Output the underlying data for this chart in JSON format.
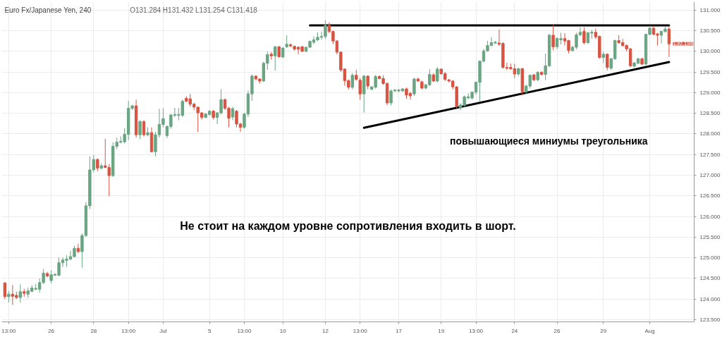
{
  "chart_data": {
    "type": "candlestick",
    "title": "Euro Fx/Japanese Yen, 240",
    "subtitle": "O131.284 H131.432 L131.254 C131.418",
    "annotations": [
      "Не стоит на каждом уровне сопротивления входить в шорт.",
      "повышающиеся миниумы треугольника",
      "130.184"
    ],
    "ylim": [
      123.45,
      131.2
    ],
    "yticks": [
      {
        "value": 123.5,
        "label": "123.500"
      },
      {
        "value": 124,
        "label": "124.000"
      },
      {
        "value": 124.5,
        "label": "124.500"
      },
      {
        "value": 125,
        "label": "125.000"
      },
      {
        "value": 125.5,
        "label": "125.500"
      },
      {
        "value": 126,
        "label": "126.000"
      },
      {
        "value": 126.5,
        "label": "126.500"
      },
      {
        "value": 127,
        "label": "127.000"
      },
      {
        "value": 127.5,
        "label": "127.500"
      },
      {
        "value": 128,
        "label": "128.000"
      },
      {
        "value": 128.5,
        "label": "128.500"
      },
      {
        "value": 129,
        "label": "129.000"
      },
      {
        "value": 129.5,
        "label": "129.500"
      },
      {
        "value": 130,
        "label": "130.000"
      },
      {
        "value": 130.5,
        "label": "130.500"
      },
      {
        "value": 131,
        "label": "131.000"
      }
    ],
    "grid": true,
    "categories": [
      null,
      "13:00",
      null,
      null,
      null,
      null,
      null,
      null,
      null,
      null,
      null,
      null,
      "26",
      null,
      null,
      null,
      null,
      null,
      null,
      null,
      null,
      null,
      null,
      "28",
      null,
      null,
      null,
      null,
      null,
      null,
      null,
      null,
      "13:00",
      null,
      null,
      null,
      null,
      null,
      null,
      null,
      null,
      "Jul",
      null,
      null,
      null,
      null,
      null,
      null,
      null,
      null,
      null,
      null,
      null,
      "5",
      null,
      null,
      null,
      null,
      null,
      null,
      null,
      null,
      "13:00",
      null,
      null,
      null,
      null,
      null,
      null,
      null,
      null,
      null,
      "10",
      null,
      null,
      null,
      null,
      null,
      null,
      null,
      null,
      null,
      null,
      "12",
      null,
      null,
      null,
      null,
      null,
      null,
      null,
      null,
      "13:00",
      null,
      null,
      null,
      null,
      null,
      null,
      null,
      null,
      null,
      "17",
      null,
      null,
      null,
      null,
      null,
      null,
      null,
      null,
      null,
      null,
      "19",
      null,
      null,
      null,
      null,
      null,
      null,
      null,
      null,
      "13:00",
      null,
      null,
      null,
      null,
      null,
      null,
      null,
      null,
      null,
      "24",
      null,
      null,
      null,
      null,
      null,
      null,
      null,
      null,
      null,
      null,
      "26",
      null,
      null,
      null,
      null,
      null,
      null,
      null,
      null,
      null,
      null,
      null,
      "29",
      null,
      null,
      null,
      null,
      null,
      null,
      null,
      null,
      null,
      null,
      null,
      "Aug",
      null,
      null,
      null,
      null,
      null
    ],
    "ohlc": [
      [
        124.39,
        124.42,
        124.0,
        124.06
      ],
      [
        124.06,
        124.2,
        123.92,
        124.12
      ],
      [
        124.12,
        124.34,
        123.86,
        124.07
      ],
      [
        124.09,
        124.18,
        124.0,
        124.04
      ],
      [
        124.04,
        124.36,
        123.92,
        124.18
      ],
      [
        124.18,
        124.25,
        124.06,
        124.14
      ],
      [
        124.12,
        124.28,
        124.03,
        124.2
      ],
      [
        124.19,
        124.34,
        124.17,
        124.27
      ],
      [
        124.24,
        124.37,
        124.22,
        124.26
      ],
      [
        124.24,
        124.5,
        124.16,
        124.4
      ],
      [
        124.4,
        124.73,
        124.37,
        124.63
      ],
      [
        124.62,
        124.66,
        124.53,
        124.56
      ],
      [
        124.45,
        124.7,
        124.38,
        124.59
      ],
      [
        124.58,
        124.63,
        124.56,
        124.6
      ],
      [
        124.58,
        125.01,
        124.56,
        124.88
      ],
      [
        124.88,
        125.01,
        124.78,
        124.95
      ],
      [
        124.94,
        125.06,
        124.78,
        124.97
      ],
      [
        124.97,
        125.17,
        124.94,
        125.03
      ],
      [
        125.03,
        125.29,
        125.01,
        125.23
      ],
      [
        125.23,
        125.34,
        125.12,
        125.15
      ],
      [
        125.15,
        125.59,
        124.76,
        125.54
      ],
      [
        125.54,
        126.35,
        125.51,
        126.26
      ],
      [
        126.26,
        127.46,
        126.18,
        127.13
      ],
      [
        127.13,
        127.49,
        127.07,
        127.38
      ],
      [
        127.38,
        127.41,
        127.1,
        127.17
      ],
      [
        127.17,
        127.29,
        127.14,
        127.23
      ],
      [
        127.23,
        127.88,
        127.17,
        127.19
      ],
      [
        127.19,
        127.27,
        126.49,
        126.99
      ],
      [
        126.99,
        127.8,
        126.96,
        127.7
      ],
      [
        127.7,
        127.91,
        127.63,
        127.8
      ],
      [
        127.8,
        127.94,
        127.77,
        127.82
      ],
      [
        127.81,
        128.14,
        127.77,
        127.99
      ],
      [
        127.99,
        128.8,
        127.85,
        128.62
      ],
      [
        128.62,
        128.7,
        128.58,
        128.68
      ],
      [
        128.68,
        128.83,
        127.91,
        127.98
      ],
      [
        127.98,
        128.33,
        127.88,
        128.3
      ],
      [
        128.3,
        128.33,
        127.94,
        127.98
      ],
      [
        127.98,
        128.16,
        127.94,
        128.03
      ],
      [
        128.03,
        128.16,
        127.55,
        127.57
      ],
      [
        127.57,
        128.05,
        127.46,
        127.98
      ],
      [
        127.98,
        128.61,
        127.91,
        128.23
      ],
      [
        128.23,
        128.62,
        128.16,
        128.37
      ],
      [
        127.96,
        128.21,
        127.9,
        128.18
      ],
      [
        128.18,
        128.48,
        128.13,
        128.46
      ],
      [
        128.45,
        128.63,
        128.41,
        128.47
      ],
      [
        128.45,
        128.63,
        128.33,
        128.47
      ],
      [
        128.45,
        128.83,
        128.41,
        128.79
      ],
      [
        128.86,
        128.91,
        128.77,
        128.79
      ],
      [
        128.85,
        128.97,
        128.66,
        128.72
      ],
      [
        128.72,
        128.75,
        128.58,
        128.65
      ],
      [
        128.65,
        128.66,
        128.05,
        128.51
      ],
      [
        128.51,
        128.53,
        128.35,
        128.4
      ],
      [
        128.4,
        128.51,
        128.38,
        128.48
      ],
      [
        128.47,
        128.58,
        128.44,
        128.55
      ],
      [
        128.55,
        128.58,
        128.35,
        128.4
      ],
      [
        128.4,
        128.53,
        128.24,
        128.51
      ],
      [
        128.51,
        129.08,
        128.47,
        128.83
      ],
      [
        128.83,
        128.86,
        128.58,
        128.62
      ],
      [
        128.62,
        128.66,
        128.16,
        128.38
      ],
      [
        128.41,
        128.66,
        128.33,
        128.61
      ],
      [
        128.55,
        128.58,
        128.16,
        128.24
      ],
      [
        128.24,
        128.27,
        128.05,
        128.16
      ],
      [
        128.16,
        128.51,
        128.13,
        128.48
      ],
      [
        128.48,
        129.05,
        128.41,
        128.97
      ],
      [
        128.97,
        129.44,
        128.8,
        129.4
      ],
      [
        129.4,
        129.42,
        129.3,
        129.33
      ],
      [
        129.33,
        129.34,
        129.22,
        129.28
      ],
      [
        129.28,
        129.75,
        129.26,
        129.71
      ],
      [
        129.71,
        130.0,
        129.55,
        129.92
      ],
      [
        129.93,
        129.98,
        129.8,
        129.89
      ],
      [
        129.89,
        130.13,
        129.53,
        130.11
      ],
      [
        130.11,
        130.13,
        129.85,
        129.87
      ],
      [
        129.86,
        130.1,
        129.84,
        130.08
      ],
      [
        130.11,
        130.39,
        130.08,
        130.17
      ],
      [
        130.16,
        130.19,
        130.1,
        130.13
      ],
      [
        130.12,
        130.14,
        130.02,
        130.05
      ],
      [
        130.1,
        130.12,
        129.93,
        130.05
      ],
      [
        130.11,
        130.13,
        129.98,
        130.0
      ],
      [
        130.0,
        130.11,
        129.98,
        130.1
      ],
      [
        130.1,
        130.26,
        130.08,
        130.24
      ],
      [
        130.22,
        130.36,
        130.17,
        130.28
      ],
      [
        130.28,
        130.46,
        130.25,
        130.34
      ],
      [
        130.34,
        130.48,
        130.28,
        130.36
      ],
      [
        130.36,
        130.75,
        130.3,
        130.63
      ],
      [
        130.63,
        130.7,
        130.44,
        130.48
      ],
      [
        130.48,
        130.5,
        130.18,
        130.25
      ],
      [
        130.25,
        130.27,
        129.93,
        129.98
      ],
      [
        129.98,
        130.0,
        129.5,
        129.55
      ],
      [
        129.57,
        129.59,
        129.17,
        129.29
      ],
      [
        129.29,
        129.32,
        129.08,
        129.13
      ],
      [
        129.13,
        129.47,
        129.08,
        129.42
      ],
      [
        129.42,
        129.55,
        129.29,
        129.32
      ],
      [
        129.3,
        129.36,
        128.83,
        128.97
      ],
      [
        128.97,
        129.43,
        128.52,
        129.4
      ],
      [
        129.4,
        129.42,
        129.08,
        129.16
      ],
      [
        129.08,
        129.16,
        129.06,
        129.14
      ],
      [
        129.13,
        129.43,
        129.1,
        129.39
      ],
      [
        129.39,
        129.42,
        129.32,
        129.34
      ],
      [
        129.34,
        129.42,
        129.19,
        129.22
      ],
      [
        129.22,
        129.25,
        128.7,
        128.75
      ],
      [
        128.75,
        129.08,
        128.69,
        129.04
      ],
      [
        129.04,
        129.09,
        129.02,
        129.06
      ],
      [
        129.04,
        129.09,
        129.01,
        129.06
      ],
      [
        129.04,
        129.11,
        129.02,
        129.09
      ],
      [
        129.09,
        129.12,
        128.85,
        128.94
      ],
      [
        128.98,
        129.02,
        128.83,
        128.92
      ],
      [
        128.97,
        129.36,
        128.92,
        129.33
      ],
      [
        129.33,
        129.36,
        129.26,
        129.28
      ],
      [
        129.26,
        129.29,
        129.08,
        129.11
      ],
      [
        129.11,
        129.21,
        129.08,
        129.19
      ],
      [
        129.19,
        129.57,
        129.16,
        129.44
      ],
      [
        129.43,
        129.47,
        129.26,
        129.28
      ],
      [
        129.28,
        129.62,
        129.25,
        129.57
      ],
      [
        129.57,
        129.58,
        129.43,
        129.46
      ],
      [
        129.46,
        129.5,
        129.28,
        129.32
      ],
      [
        129.31,
        129.33,
        129.25,
        129.28
      ],
      [
        129.28,
        129.3,
        129.08,
        129.14
      ],
      [
        129.14,
        129.16,
        128.62,
        128.66
      ],
      [
        128.63,
        128.75,
        128.58,
        128.7
      ],
      [
        128.69,
        128.93,
        128.66,
        128.9
      ],
      [
        128.87,
        128.98,
        128.84,
        128.9
      ],
      [
        128.87,
        129.03,
        128.83,
        129.01
      ],
      [
        129.01,
        129.27,
        128.95,
        129.25
      ],
      [
        129.25,
        129.78,
        128.79,
        129.76
      ],
      [
        129.76,
        130.06,
        129.73,
        130.01
      ],
      [
        130.01,
        130.25,
        129.99,
        130.14
      ],
      [
        130.14,
        130.34,
        130.12,
        130.21
      ],
      [
        130.2,
        130.25,
        130.18,
        130.22
      ],
      [
        130.2,
        130.53,
        130.13,
        130.17
      ],
      [
        130.19,
        130.22,
        129.58,
        129.61
      ],
      [
        129.61,
        129.72,
        129.55,
        129.59
      ],
      [
        129.61,
        129.7,
        129.55,
        129.58
      ],
      [
        129.58,
        129.7,
        129.35,
        129.45
      ],
      [
        129.45,
        129.6,
        129.4,
        129.58
      ],
      [
        129.58,
        129.6,
        128.93,
        129.02
      ],
      [
        129.02,
        129.19,
        128.96,
        129.16
      ],
      [
        129.16,
        129.44,
        129.1,
        129.42
      ],
      [
        129.43,
        129.45,
        129.28,
        129.31
      ],
      [
        129.31,
        129.52,
        129.28,
        129.49
      ],
      [
        129.49,
        129.52,
        129.41,
        129.44
      ],
      [
        129.44,
        129.95,
        129.3,
        129.65
      ],
      [
        129.65,
        130.42,
        129.62,
        130.39
      ],
      [
        130.39,
        130.64,
        130.03,
        130.11
      ],
      [
        130.11,
        130.34,
        130.05,
        130.31
      ],
      [
        130.28,
        130.45,
        130.17,
        130.31
      ],
      [
        130.31,
        130.44,
        130.14,
        130.25
      ],
      [
        130.26,
        130.28,
        129.95,
        130.02
      ],
      [
        130.02,
        130.14,
        129.99,
        130.1
      ],
      [
        130.1,
        130.45,
        130.05,
        130.4
      ],
      [
        130.4,
        130.58,
        130.37,
        130.46
      ],
      [
        130.48,
        130.58,
        130.17,
        130.21
      ],
      [
        130.21,
        130.47,
        130.18,
        130.45
      ],
      [
        130.44,
        130.52,
        130.3,
        130.46
      ],
      [
        130.46,
        130.55,
        130.3,
        130.35
      ],
      [
        130.36,
        130.38,
        129.82,
        129.85
      ],
      [
        129.85,
        129.99,
        129.72,
        129.93
      ],
      [
        129.93,
        129.95,
        129.54,
        129.61
      ],
      [
        129.59,
        129.84,
        129.55,
        129.82
      ],
      [
        129.82,
        130.28,
        129.8,
        130.26
      ],
      [
        130.26,
        130.39,
        130.18,
        130.21
      ],
      [
        130.21,
        130.3,
        130.11,
        130.14
      ],
      [
        130.14,
        130.17,
        130.0,
        130.06
      ],
      [
        130.06,
        130.08,
        129.62,
        129.65
      ],
      [
        129.64,
        129.74,
        129.61,
        129.72
      ],
      [
        129.71,
        129.84,
        129.69,
        129.82
      ],
      [
        129.82,
        129.84,
        129.67,
        129.69
      ],
      [
        129.69,
        130.43,
        129.67,
        130.41
      ],
      [
        130.41,
        130.62,
        130.39,
        130.56
      ],
      [
        130.56,
        130.62,
        130.39,
        130.41
      ],
      [
        130.42,
        130.45,
        130.14,
        130.39
      ],
      [
        130.39,
        130.5,
        130.19,
        130.48
      ],
      [
        130.48,
        130.6,
        130.45,
        130.54
      ],
      [
        130.54,
        130.59,
        129.86,
        130.18
      ]
    ],
    "colors": [
      "#d75442",
      "#6ba583",
      "#d75442",
      "#d75442",
      "#6ba583",
      "#d75442",
      "#6ba583",
      "#6ba583",
      "#6ba583",
      "#6ba583",
      "#6ba583",
      "#d75442",
      "#6ba583",
      "#6ba583",
      "#6ba583",
      "#6ba583",
      "#6ba583",
      "#6ba583",
      "#6ba583",
      "#d75442",
      "#6ba583",
      "#6ba583",
      "#6ba583",
      "#6ba583",
      "#d75442",
      "#6ba583",
      "#d75442",
      "#d75442",
      "#6ba583",
      "#6ba583",
      "#6ba583",
      "#6ba583",
      "#6ba583",
      "#6ba583",
      "#d75442",
      "#6ba583",
      "#d75442",
      "#6ba583",
      "#d75442",
      "#6ba583",
      "#6ba583",
      "#6ba583",
      "#6ba583",
      "#6ba583",
      "#6ba583",
      "#6ba583",
      "#6ba583",
      "#d75442",
      "#d75442",
      "#d75442",
      "#d75442",
      "#d75442",
      "#6ba583",
      "#6ba583",
      "#d75442",
      "#6ba583",
      "#6ba583",
      "#d75442",
      "#d75442",
      "#6ba583",
      "#d75442",
      "#d75442",
      "#6ba583",
      "#6ba583",
      "#6ba583",
      "#d75442",
      "#d75442",
      "#6ba583",
      "#6ba583",
      "#d75442",
      "#6ba583",
      "#d75442",
      "#6ba583",
      "#6ba583",
      "#d75442",
      "#d75442",
      "#d75442",
      "#d75442",
      "#6ba583",
      "#6ba583",
      "#6ba583",
      "#6ba583",
      "#6ba583",
      "#6ba583",
      "#d75442",
      "#d75442",
      "#d75442",
      "#d75442",
      "#d75442",
      "#d75442",
      "#6ba583",
      "#d75442",
      "#d75442",
      "#6ba583",
      "#d75442",
      "#6ba583",
      "#6ba583",
      "#d75442",
      "#d75442",
      "#d75442",
      "#6ba583",
      "#6ba583",
      "#6ba583",
      "#6ba583",
      "#d75442",
      "#d75442",
      "#6ba583",
      "#d75442",
      "#d75442",
      "#6ba583",
      "#6ba583",
      "#d75442",
      "#6ba583",
      "#d75442",
      "#d75442",
      "#d75442",
      "#d75442",
      "#d75442",
      "#6ba583",
      "#6ba583",
      "#6ba583",
      "#6ba583",
      "#6ba583",
      "#6ba583",
      "#6ba583",
      "#6ba583",
      "#6ba583",
      "#6ba583",
      "#d75442",
      "#d75442",
      "#d75442",
      "#d75442",
      "#d75442",
      "#6ba583",
      "#d75442",
      "#6ba583",
      "#6ba583",
      "#d75442",
      "#6ba583",
      "#d75442",
      "#6ba583",
      "#6ba583",
      "#d75442",
      "#6ba583",
      "#6ba583",
      "#d75442",
      "#d75442",
      "#6ba583",
      "#6ba583",
      "#6ba583",
      "#d75442",
      "#6ba583",
      "#6ba583",
      "#d75442",
      "#d75442",
      "#6ba583",
      "#d75442",
      "#6ba583",
      "#6ba583",
      "#d75442",
      "#d75442",
      "#d75442",
      "#d75442",
      "#6ba583",
      "#6ba583",
      "#d75442",
      "#6ba583",
      "#6ba583",
      "#d75442",
      "#d75442",
      "#6ba583",
      "#6ba583",
      "#d75442"
    ],
    "series": [
      {
        "type": "line",
        "color": "#000000",
        "values": [
          null,
          null,
          null,
          null,
          null,
          null,
          null,
          null,
          null,
          null,
          null,
          null,
          null,
          null,
          null,
          null,
          null,
          null,
          null,
          null,
          null,
          null,
          null,
          null,
          null,
          null,
          null,
          null,
          null,
          null,
          null,
          null,
          null,
          null,
          null,
          null,
          null,
          null,
          null,
          null,
          null,
          null,
          null,
          null,
          null,
          null,
          null,
          null,
          null,
          null,
          null,
          null,
          null,
          null,
          null,
          null,
          null,
          null,
          null,
          null,
          null,
          null,
          null,
          null,
          null,
          null,
          null,
          null,
          null,
          null,
          null,
          null,
          null,
          null,
          null,
          null,
          null,
          null,
          null,
          130.63,
          null,
          null,
          null,
          null,
          null,
          null,
          null,
          null,
          null,
          null,
          null,
          null,
          null,
          null,
          null,
          null,
          null,
          null,
          null,
          null,
          null,
          null,
          null,
          null,
          null,
          null,
          null,
          null,
          null,
          null,
          null,
          null,
          null,
          null,
          null,
          null,
          null,
          null,
          null,
          null,
          null,
          null,
          null,
          null,
          null,
          null,
          null,
          null,
          null,
          null,
          null,
          null,
          null,
          null,
          null,
          null,
          null,
          null,
          null,
          null,
          null,
          null,
          null,
          null,
          null,
          null,
          null,
          null,
          null,
          null,
          null,
          null,
          null,
          null,
          null,
          null,
          null,
          null,
          null,
          null,
          null,
          null,
          null,
          null,
          null,
          null,
          null,
          null,
          null,
          null,
          null,
          null,
          130.63
        ]
      },
      {
        "type": "line",
        "color": "#000000",
        "values": [
          null,
          null,
          null,
          null,
          null,
          null,
          null,
          null,
          null,
          null,
          null,
          null,
          null,
          null,
          null,
          null,
          null,
          null,
          null,
          null,
          null,
          null,
          null,
          null,
          null,
          null,
          null,
          null,
          null,
          null,
          null,
          null,
          null,
          null,
          null,
          null,
          null,
          null,
          null,
          null,
          null,
          null,
          null,
          null,
          null,
          null,
          null,
          null,
          null,
          null,
          null,
          null,
          null,
          null,
          null,
          null,
          null,
          null,
          null,
          null,
          null,
          null,
          null,
          null,
          null,
          null,
          null,
          null,
          null,
          null,
          null,
          null,
          null,
          null,
          null,
          null,
          null,
          null,
          null,
          null,
          null,
          null,
          null,
          null,
          null,
          null,
          null,
          null,
          null,
          null,
          null,
          null,
          null,
          128.15,
          null,
          null,
          null,
          null,
          null,
          null,
          null,
          null,
          null,
          null,
          null,
          null,
          null,
          null,
          null,
          null,
          null,
          null,
          null,
          null,
          null,
          null,
          null,
          null,
          null,
          null,
          null,
          null,
          null,
          null,
          null,
          null,
          null,
          null,
          null,
          null,
          null,
          null,
          null,
          null,
          null,
          null,
          null,
          null,
          null,
          null,
          null,
          null,
          null,
          null,
          null,
          null,
          null,
          null,
          null,
          null,
          null,
          null,
          null,
          null,
          null,
          null,
          null,
          null,
          null,
          null,
          null,
          null,
          null,
          null,
          null,
          null,
          null,
          null,
          null,
          null,
          null,
          null,
          129.74
        ]
      }
    ]
  }
}
